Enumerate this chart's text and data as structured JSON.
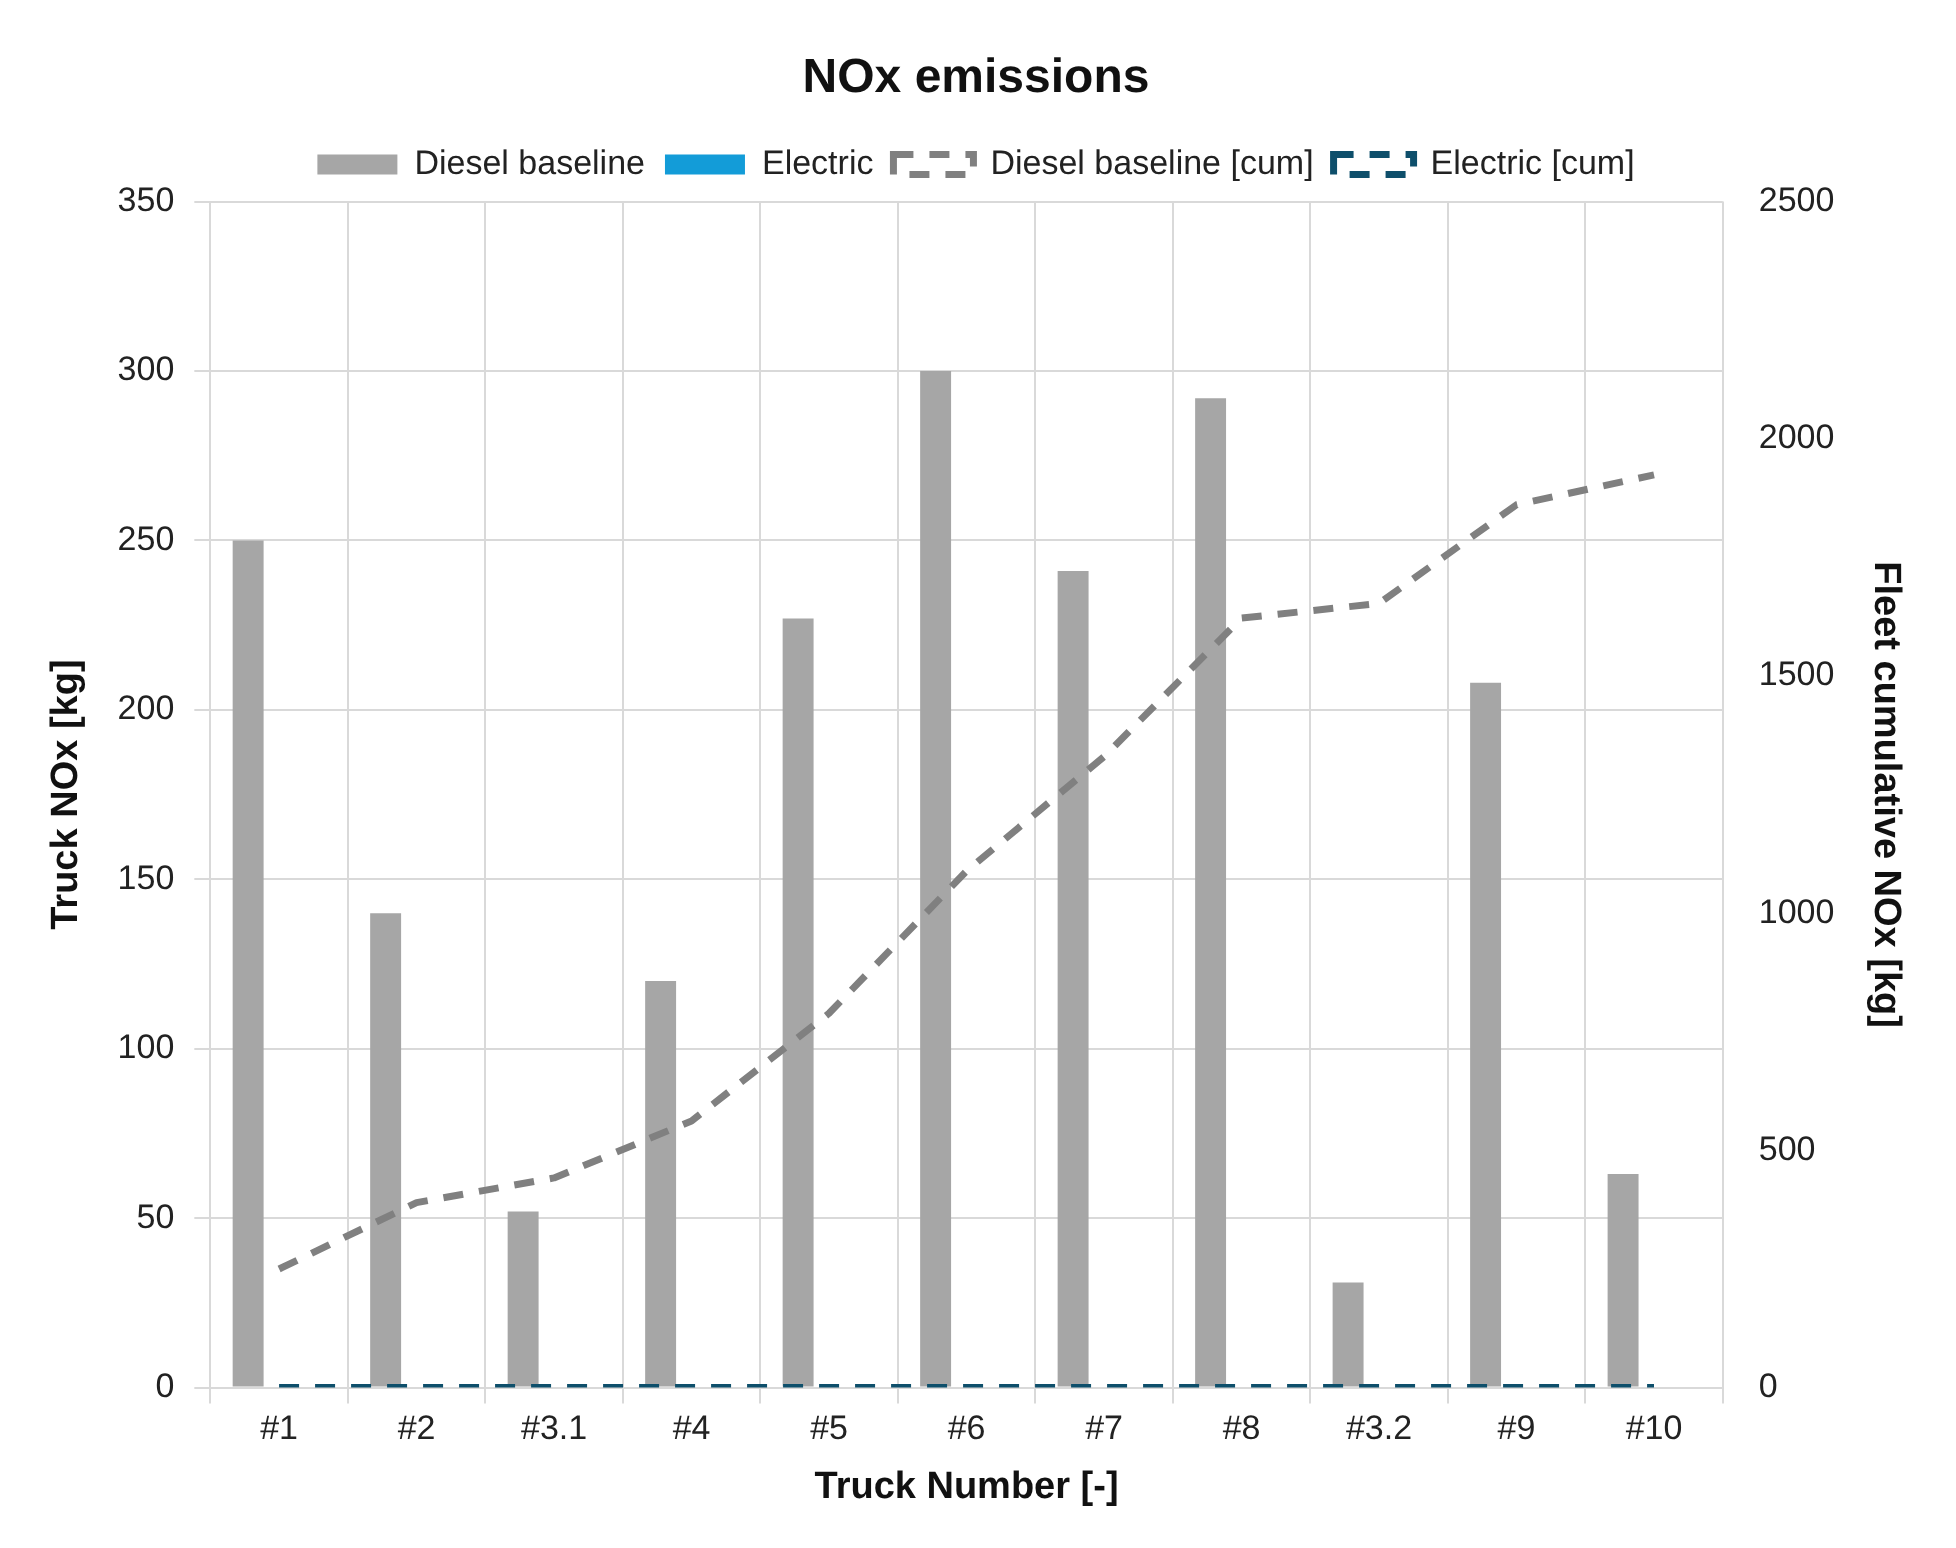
{
  "chart_data": {
    "type": "bar",
    "title": "NOx emissions",
    "xlabel": "Truck Number [-]",
    "ylabel": "Truck NOx [kg]",
    "y2label": "Fleet cumulative NOx [kg]",
    "categories": [
      "#1",
      "#2",
      "#3.1",
      "#4",
      "#5",
      "#6",
      "#7",
      "#8",
      "#3.2",
      "#9",
      "#10"
    ],
    "series": [
      {
        "name": "Diesel baseline",
        "color": "#a6a6a6",
        "values": [
          250,
          140,
          52,
          120,
          227,
          300,
          241,
          292,
          31,
          208,
          63
        ]
      },
      {
        "name": "Electric",
        "color": "#139cd8",
        "values": [
          0,
          0,
          0,
          0,
          0,
          0,
          0,
          0,
          0,
          0,
          0
        ]
      },
      {
        "name": "Diesel baseline [cum]",
        "type": "line",
        "axis": "y2",
        "line_style": "dashed",
        "color": "#808080",
        "values": [
          250,
          390,
          442,
          562,
          789,
          1089,
          1330,
          1622,
          1653,
          1861,
          1924
        ]
      },
      {
        "name": "Electric [cum]",
        "type": "line",
        "axis": "y2",
        "line_style": "dashed",
        "color": "#0e4f6b",
        "values": [
          0,
          0,
          0,
          0,
          0,
          0,
          0,
          0,
          0,
          0,
          0
        ]
      }
    ],
    "ylim": [
      0,
      350
    ],
    "yticks": [
      0,
      50,
      100,
      150,
      200,
      250,
      300,
      350
    ],
    "y2lim": [
      0,
      2500
    ],
    "y2ticks": [
      0,
      500,
      1000,
      1500,
      2000,
      2500
    ],
    "grid": true,
    "legend": "top",
    "marker": "none"
  }
}
